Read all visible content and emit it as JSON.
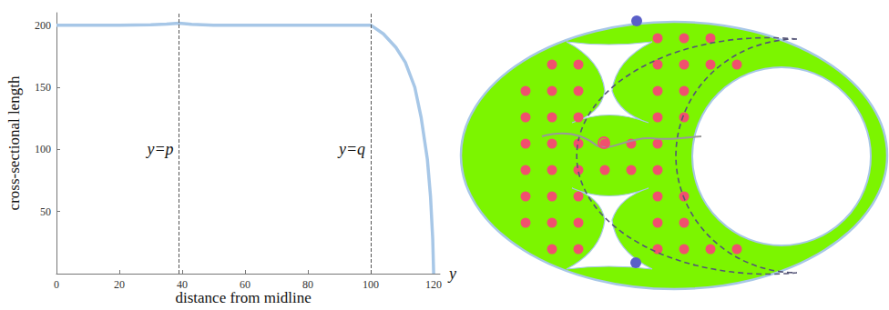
{
  "chart_data": {
    "type": "line",
    "xlabel": "distance from midline",
    "x_symbol": "y",
    "ylabel": "cross-sectional length",
    "x": [
      0,
      10,
      20,
      30,
      35,
      39,
      43,
      50,
      60,
      70,
      80,
      90,
      100,
      104,
      108,
      111,
      114,
      116,
      118,
      119,
      119.7,
      120
    ],
    "values": [
      200,
      200,
      200,
      200.3,
      200.8,
      201.5,
      200.6,
      200,
      200,
      200,
      200,
      200,
      200,
      193,
      182,
      170,
      150,
      126,
      92,
      62,
      28,
      0
    ],
    "color": "#a7c7e7",
    "xlim": [
      0,
      122
    ],
    "ylim": [
      0,
      210
    ],
    "xticks": [
      0,
      20,
      40,
      60,
      80,
      100,
      120
    ],
    "yticks": [
      50,
      100,
      150,
      200
    ],
    "grid": false,
    "annotations": [
      {
        "text": "y=p",
        "x": 39,
        "y": 100
      },
      {
        "text": "y=q",
        "x": 100,
        "y": 100
      }
    ]
  }
}
